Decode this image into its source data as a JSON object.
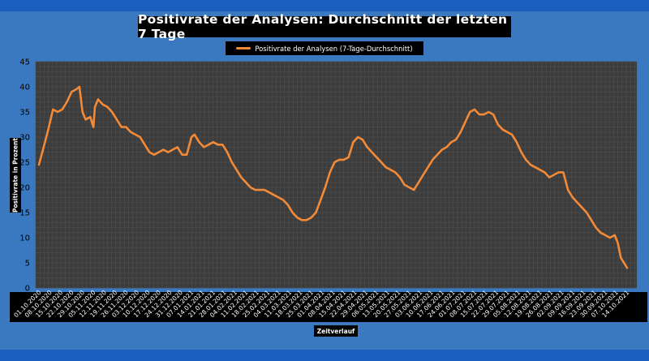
{
  "chart_data": {
    "type": "line",
    "title": "Positivrate der Analysen: Durchschnitt der letzten 7 Tage",
    "xlabel": "Zeitverlauf",
    "ylabel": "Positivrate in Prozent",
    "ylim": [
      0,
      45
    ],
    "yticks": [
      0,
      5,
      10,
      15,
      20,
      25,
      30,
      35,
      40,
      45
    ],
    "grid": true,
    "legend_position": "top-center",
    "xtick_labels": [
      "01.10.2020",
      "08.10.2020",
      "15.10.2020",
      "22.10.2020",
      "29.10.2020",
      "05.11.2020",
      "12.11.2020",
      "19.11.2020",
      "26.11.2020",
      "03.12.2020",
      "10.12.2020",
      "17.12.2020",
      "24.12.2020",
      "31.12.2020",
      "07.01.2021",
      "14.01.2021",
      "21.01.2021",
      "28.01.2021",
      "04.02.2021",
      "11.02.2021",
      "18.02.2021",
      "25.02.2021",
      "04.03.2021",
      "11.03.2021",
      "18.03.2021",
      "25.03.2021",
      "01.04.2021",
      "08.04.2021",
      "15.04.2021",
      "22.04.2021",
      "29.04.2021",
      "06.05.2021",
      "13.05.2021",
      "20.05.2021",
      "27.05.2021",
      "03.06.2021",
      "10.06.2021",
      "17.06.2021",
      "24.06.2021",
      "01.07.2021",
      "08.07.2021",
      "15.07.2021",
      "22.07.2021",
      "29.07.2021",
      "05.08.2021",
      "12.08.2021",
      "19.08.2021",
      "26.08.2021",
      "02.09.2021",
      "09.09.2021",
      "16.09.2021",
      "23.09.2021",
      "30.09.2021",
      "07.10.2021",
      "14.10.2021"
    ],
    "series": [
      {
        "name": "Positivrate der Analysen (7-Tage-Durchschnitt)",
        "color": "#f28a38",
        "points": [
          [
            "01.10.2020",
            24.5
          ],
          [
            "04.10.2020",
            28
          ],
          [
            "07.10.2020",
            31.5
          ],
          [
            "10.10.2020",
            35.5
          ],
          [
            "13.10.2020",
            35
          ],
          [
            "16.10.2020",
            35.5
          ],
          [
            "19.10.2020",
            37
          ],
          [
            "22.10.2020",
            39
          ],
          [
            "25.10.2020",
            39.5
          ],
          [
            "27.10.2020",
            40
          ],
          [
            "29.10.2020",
            35
          ],
          [
            "31.10.2020",
            33.5
          ],
          [
            "03.11.2020",
            34
          ],
          [
            "05.11.2020",
            32
          ],
          [
            "06.11.2020",
            36
          ],
          [
            "08.11.2020",
            37.5
          ],
          [
            "11.11.2020",
            36.5
          ],
          [
            "14.11.2020",
            36
          ],
          [
            "17.11.2020",
            35
          ],
          [
            "20.11.2020",
            33.5
          ],
          [
            "23.11.2020",
            32
          ],
          [
            "26.11.2020",
            32
          ],
          [
            "29.11.2020",
            31
          ],
          [
            "02.12.2020",
            30.5
          ],
          [
            "05.12.2020",
            30
          ],
          [
            "08.12.2020",
            28.5
          ],
          [
            "11.12.2020",
            27
          ],
          [
            "14.12.2020",
            26.5
          ],
          [
            "17.12.2020",
            27
          ],
          [
            "20.12.2020",
            27.5
          ],
          [
            "23.12.2020",
            27
          ],
          [
            "26.12.2020",
            27.5
          ],
          [
            "29.12.2020",
            28
          ],
          [
            "01.01.2021",
            26.5
          ],
          [
            "04.01.2021",
            26.5
          ],
          [
            "07.01.2021",
            30
          ],
          [
            "09.01.2021",
            30.5
          ],
          [
            "12.01.2021",
            29
          ],
          [
            "15.01.2021",
            28
          ],
          [
            "18.01.2021",
            28.5
          ],
          [
            "21.01.2021",
            29
          ],
          [
            "24.01.2021",
            28.5
          ],
          [
            "27.01.2021",
            28.5
          ],
          [
            "30.01.2021",
            27
          ],
          [
            "02.02.2021",
            25
          ],
          [
            "05.02.2021",
            23.5
          ],
          [
            "08.02.2021",
            22
          ],
          [
            "11.02.2021",
            21
          ],
          [
            "14.02.2021",
            20
          ],
          [
            "17.02.2021",
            19.5
          ],
          [
            "20.02.2021",
            19.5
          ],
          [
            "23.02.2021",
            19.5
          ],
          [
            "26.02.2021",
            19
          ],
          [
            "01.03.2021",
            18.5
          ],
          [
            "04.03.2021",
            18
          ],
          [
            "07.03.2021",
            17.5
          ],
          [
            "10.03.2021",
            16.5
          ],
          [
            "13.03.2021",
            15
          ],
          [
            "16.03.2021",
            14
          ],
          [
            "19.03.2021",
            13.5
          ],
          [
            "22.03.2021",
            13.5
          ],
          [
            "25.03.2021",
            14
          ],
          [
            "28.03.2021",
            15
          ],
          [
            "31.03.2021",
            17.5
          ],
          [
            "03.04.2021",
            20
          ],
          [
            "06.04.2021",
            23
          ],
          [
            "09.04.2021",
            25
          ],
          [
            "12.04.2021",
            25.5
          ],
          [
            "15.04.2021",
            25.5
          ],
          [
            "18.04.2021",
            26
          ],
          [
            "21.04.2021",
            29
          ],
          [
            "24.04.2021",
            30
          ],
          [
            "27.04.2021",
            29.5
          ],
          [
            "30.04.2021",
            28
          ],
          [
            "03.05.2021",
            27
          ],
          [
            "06.05.2021",
            26
          ],
          [
            "09.05.2021",
            25
          ],
          [
            "12.05.2021",
            24
          ],
          [
            "15.05.2021",
            23.5
          ],
          [
            "18.05.2021",
            23
          ],
          [
            "21.05.2021",
            22
          ],
          [
            "24.05.2021",
            20.5
          ],
          [
            "27.05.2021",
            20
          ],
          [
            "30.05.2021",
            19.5
          ],
          [
            "02.06.2021",
            21
          ],
          [
            "05.06.2021",
            22.5
          ],
          [
            "08.06.2021",
            24
          ],
          [
            "11.06.2021",
            25.5
          ],
          [
            "14.06.2021",
            26.5
          ],
          [
            "17.06.2021",
            27.5
          ],
          [
            "20.06.2021",
            28
          ],
          [
            "23.06.2021",
            29
          ],
          [
            "26.06.2021",
            29.5
          ],
          [
            "29.06.2021",
            31
          ],
          [
            "02.07.2021",
            33
          ],
          [
            "05.07.2021",
            35
          ],
          [
            "08.07.2021",
            35.5
          ],
          [
            "11.07.2021",
            34.5
          ],
          [
            "14.07.2021",
            34.5
          ],
          [
            "17.07.2021",
            35
          ],
          [
            "20.07.2021",
            34.5
          ],
          [
            "23.07.2021",
            32.5
          ],
          [
            "26.07.2021",
            31.5
          ],
          [
            "29.07.2021",
            31
          ],
          [
            "01.08.2021",
            30.5
          ],
          [
            "04.08.2021",
            29
          ],
          [
            "07.08.2021",
            27
          ],
          [
            "10.08.2021",
            25.5
          ],
          [
            "13.08.2021",
            24.5
          ],
          [
            "16.08.2021",
            24
          ],
          [
            "19.08.2021",
            23.5
          ],
          [
            "22.08.2021",
            23
          ],
          [
            "25.08.2021",
            22
          ],
          [
            "28.08.2021",
            22.5
          ],
          [
            "31.08.2021",
            23
          ],
          [
            "03.09.2021",
            23
          ],
          [
            "06.09.2021",
            19.5
          ],
          [
            "09.09.2021",
            18
          ],
          [
            "12.09.2021",
            17
          ],
          [
            "15.09.2021",
            16
          ],
          [
            "18.09.2021",
            15
          ],
          [
            "21.09.2021",
            13.5
          ],
          [
            "24.09.2021",
            12
          ],
          [
            "27.09.2021",
            11
          ],
          [
            "30.09.2021",
            10.5
          ],
          [
            "03.10.2021",
            10
          ],
          [
            "06.10.2021",
            10.5
          ],
          [
            "08.10.2021",
            9
          ],
          [
            "10.10.2021",
            6
          ],
          [
            "12.10.2021",
            5
          ],
          [
            "14.10.2021",
            4
          ]
        ]
      }
    ]
  }
}
